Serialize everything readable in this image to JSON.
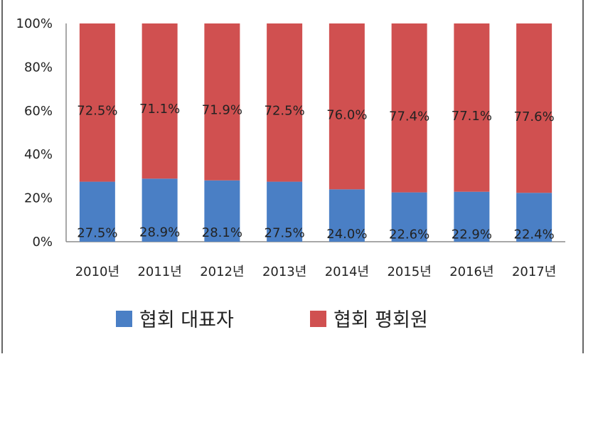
{
  "chart_data": {
    "type": "bar",
    "stacked": true,
    "percent": true,
    "categories": [
      "2010년",
      "2011년",
      "2012년",
      "2013년",
      "2014년",
      "2015년",
      "2016년",
      "2017년"
    ],
    "series": [
      {
        "name": "협회 대표자",
        "color": "#4a7fc5",
        "values": [
          27.5,
          28.9,
          28.1,
          27.5,
          24.0,
          22.6,
          22.9,
          22.4
        ],
        "labels": [
          "27.5%",
          "28.9%",
          "28.1%",
          "27.5%",
          "24.0%",
          "22.6%",
          "22.9%",
          "22.4%"
        ]
      },
      {
        "name": "협회 평회원",
        "color": "#d05050",
        "values": [
          72.5,
          71.1,
          71.9,
          72.5,
          76.0,
          77.4,
          77.1,
          77.6
        ],
        "labels": [
          "72.5%",
          "71.1%",
          "71.9%",
          "72.5%",
          "76.0%",
          "77.4%",
          "77.1%",
          "77.6%"
        ]
      }
    ],
    "yticks": [
      "0%",
      "20%",
      "40%",
      "60%",
      "80%",
      "100%"
    ],
    "ylim": [
      0,
      100
    ],
    "grid": false,
    "legend_position": "bottom"
  }
}
